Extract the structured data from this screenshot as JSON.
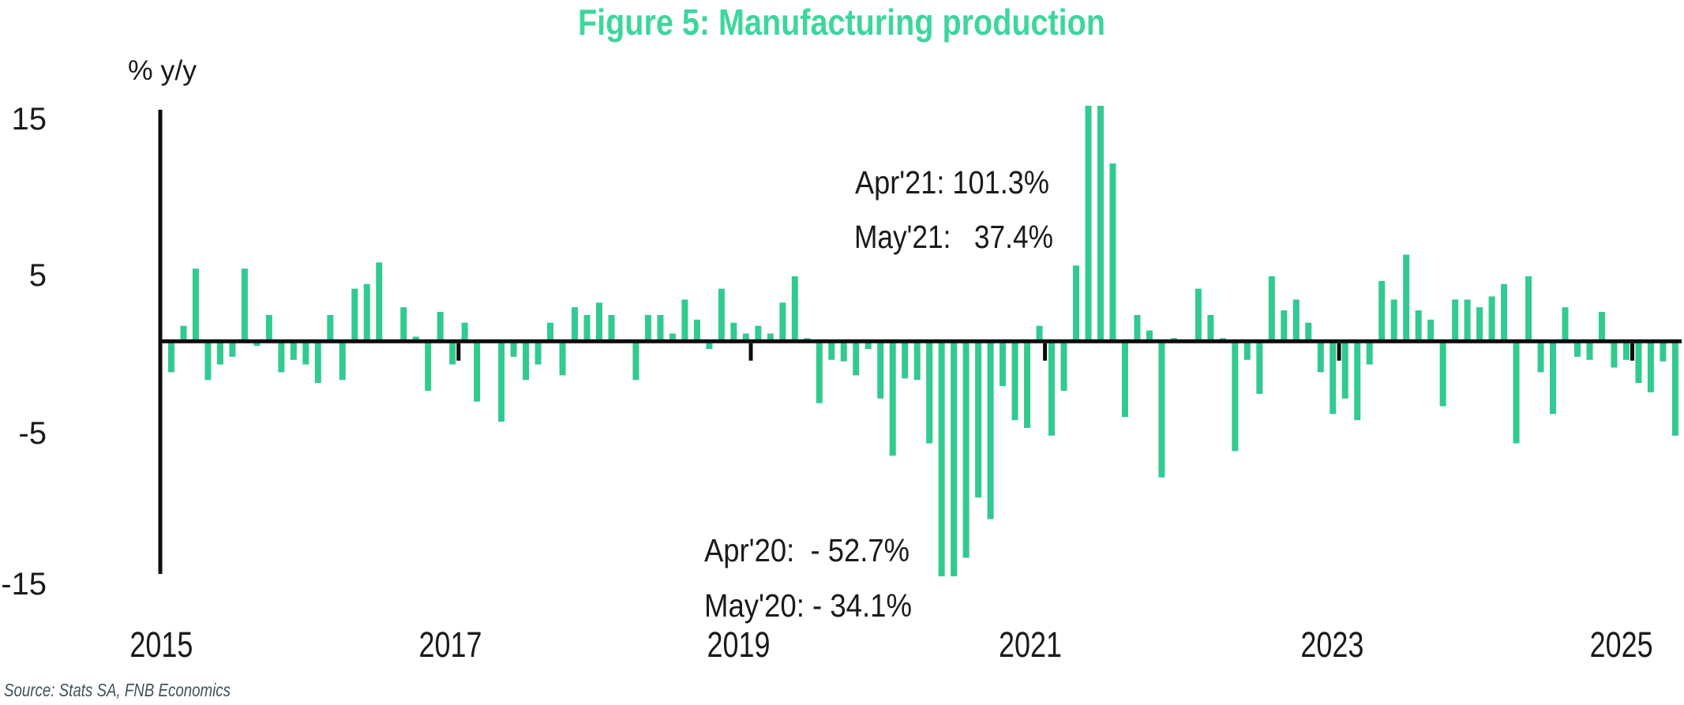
{
  "title": {
    "text": "Figure 5: Manufacturing production",
    "color": "#3dd69c"
  },
  "source": {
    "text": "Source: Stats SA, FNB Economics",
    "color": "#3f5159"
  },
  "chart_data": {
    "type": "bar",
    "title": "Figure 5: Manufacturing production",
    "ylabel": "% y/y",
    "xlabel": "",
    "legend": "none",
    "grid": "off",
    "bar_color": "#31ca90",
    "axis_color": "#0d0d0d",
    "text_color": "#1a1a1a",
    "y_ticks": [
      15,
      5,
      -5,
      -15
    ],
    "x_tick_labels": [
      "2015",
      "2017",
      "2019",
      "2021",
      "2023",
      "2025"
    ],
    "ylim_display": [
      -15.2,
      15.2
    ],
    "clip_note": "bars beyond +/-15.2 are clipped at the plot edge",
    "frequency": "monthly",
    "categories": [
      "2015-01",
      "2015-02",
      "2015-03",
      "2015-04",
      "2015-05",
      "2015-06",
      "2015-07",
      "2015-08",
      "2015-09",
      "2015-10",
      "2015-11",
      "2015-12",
      "2016-01",
      "2016-02",
      "2016-03",
      "2016-04",
      "2016-05",
      "2016-06",
      "2016-07",
      "2016-08",
      "2016-09",
      "2016-10",
      "2016-11",
      "2016-12",
      "2017-01",
      "2017-02",
      "2017-03",
      "2017-04",
      "2017-05",
      "2017-06",
      "2017-07",
      "2017-08",
      "2017-09",
      "2017-10",
      "2017-11",
      "2017-12",
      "2018-01",
      "2018-02",
      "2018-03",
      "2018-04",
      "2018-05",
      "2018-06",
      "2018-07",
      "2018-08",
      "2018-09",
      "2018-10",
      "2018-11",
      "2018-12",
      "2019-01",
      "2019-02",
      "2019-03",
      "2019-04",
      "2019-05",
      "2019-06",
      "2019-07",
      "2019-08",
      "2019-09",
      "2019-10",
      "2019-11",
      "2019-12",
      "2020-01",
      "2020-02",
      "2020-03",
      "2020-04",
      "2020-05",
      "2020-06",
      "2020-07",
      "2020-08",
      "2020-09",
      "2020-10",
      "2020-11",
      "2020-12",
      "2021-01",
      "2021-02",
      "2021-03",
      "2021-04",
      "2021-05",
      "2021-06",
      "2021-07",
      "2021-08",
      "2021-09",
      "2021-10",
      "2021-11",
      "2021-12",
      "2022-01",
      "2022-02",
      "2022-03",
      "2022-04",
      "2022-05",
      "2022-06",
      "2022-07",
      "2022-08",
      "2022-09",
      "2022-10",
      "2022-11",
      "2022-12",
      "2023-01",
      "2023-02",
      "2023-03",
      "2023-04",
      "2023-05",
      "2023-06",
      "2023-07",
      "2023-08",
      "2023-09",
      "2023-10",
      "2023-11",
      "2023-12",
      "2024-01",
      "2024-02",
      "2024-03",
      "2024-04",
      "2024-05",
      "2024-06",
      "2024-07",
      "2024-08",
      "2024-09",
      "2024-10",
      "2024-11",
      "2024-12",
      "2025-01",
      "2025-02",
      "2025-03",
      "2025-04"
    ],
    "series": [
      {
        "name": "Manufacturing production, % y/y",
        "values": [
          -2.0,
          1.0,
          4.7,
          -2.5,
          -1.5,
          -1.0,
          4.7,
          -0.3,
          1.7,
          -2.0,
          -1.2,
          -1.5,
          -2.7,
          1.7,
          -2.5,
          3.4,
          3.7,
          5.1,
          0.1,
          2.2,
          0.3,
          -3.2,
          1.9,
          -1.5,
          1.2,
          -3.9,
          0.0,
          -5.2,
          -1.0,
          -2.5,
          -1.5,
          1.2,
          -2.2,
          2.2,
          1.7,
          2.5,
          1.7,
          0.1,
          -2.5,
          1.7,
          1.7,
          0.5,
          2.7,
          1.4,
          -0.5,
          3.4,
          1.2,
          0.5,
          1.0,
          0.5,
          2.5,
          4.2,
          0.2,
          -4.0,
          -1.2,
          -1.3,
          -2.2,
          -0.5,
          -3.7,
          -7.4,
          -2.4,
          -2.5,
          -6.6,
          -52.7,
          -34.1,
          -14.0,
          -10.1,
          -11.5,
          -2.9,
          -5.1,
          -5.6,
          1.0,
          -6.1,
          -3.2,
          4.9,
          101.3,
          37.4,
          11.5,
          -4.9,
          1.7,
          0.7,
          -8.8,
          0.2,
          0.0,
          3.4,
          1.7,
          0.2,
          -7.1,
          -1.2,
          -3.4,
          4.2,
          2.0,
          2.7,
          1.2,
          -2.0,
          -4.7,
          -3.7,
          -5.1,
          -1.5,
          3.9,
          2.7,
          5.6,
          2.0,
          1.4,
          -4.2,
          2.7,
          2.7,
          2.2,
          2.9,
          3.7,
          -6.6,
          4.2,
          -2.0,
          -4.7,
          2.2,
          -1.0,
          -1.2,
          1.9,
          -1.7,
          -1.2,
          -2.7,
          -3.3,
          -1.3,
          -6.1
        ]
      }
    ],
    "annotations": [
      {
        "id": "apr21",
        "line1": "Apr'21: 101.3%"
      },
      {
        "id": "may21",
        "line1": "May'21:   37.4%"
      },
      {
        "id": "apr20",
        "line1": "Apr'20:  - 52.7%"
      },
      {
        "id": "may20",
        "line1": "May'20: - 34.1%"
      }
    ]
  }
}
